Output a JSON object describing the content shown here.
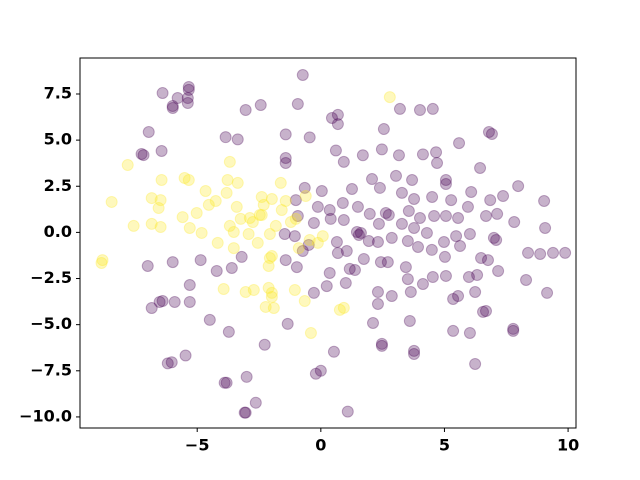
{
  "chart_data": {
    "type": "scatter",
    "xlim": [
      -9.74,
      10.32
    ],
    "ylim": [
      -10.6,
      9.45
    ],
    "xticks": [
      {
        "value": -5,
        "label": "−5"
      },
      0,
      5,
      10
    ],
    "yticks": [
      {
        "value": -10,
        "label": "−10.0"
      },
      {
        "value": -7.5,
        "label": "−7.5"
      },
      {
        "value": -5,
        "label": "−5.0"
      },
      {
        "value": -2.5,
        "label": "−2.5"
      },
      {
        "value": 0,
        "label": "0.0"
      },
      {
        "value": 2.5,
        "label": "2.5"
      },
      {
        "value": 5,
        "label": "5.0"
      },
      {
        "value": 7.5,
        "label": "7.5"
      }
    ],
    "grid": false,
    "series": [
      {
        "color": "#440154",
        "x": [
          -5.34,
          -5.34,
          -5.38,
          -5.38,
          -6.4,
          -5.79,
          -5.99,
          -5.99,
          -0.73,
          -3.04,
          -2.43,
          -0.93,
          0.69,
          0.45,
          0.69,
          2.55,
          3.2,
          4.01,
          4.53,
          -6.96,
          -7.25,
          -7.17,
          -6.44,
          -3.85,
          -3.36,
          -1.42,
          -0.45,
          0.61,
          1.7,
          2.47,
          3.16,
          4.13,
          4.66,
          5.59,
          6.8,
          6.92,
          -1.42,
          -1.42,
          0.93,
          2.07,
          3.04,
          3.69,
          4.7,
          5.06,
          5.06,
          6.44,
          7.98,
          7.37,
          9.03,
          -0.65,
          0.04,
          1.26,
          2.39,
          3.28,
          3.77,
          4.5,
          5.27,
          6.08,
          6.85,
          7.82,
          7.13,
          -1.01,
          -0.12,
          0.36,
          0.89,
          1.5,
          1.98,
          2.63,
          3.56,
          4.01,
          4.58,
          5.06,
          5.55,
          5.95,
          6.68,
          -0.93,
          -0.28,
          0.4,
          0.93,
          1.46,
          1.62,
          1.54,
          2.35,
          2.75,
          3.28,
          3.77,
          4.29,
          4.98,
          5.47,
          6.03,
          7.0,
          7.09,
          8.38,
          8.87,
          9.39,
          -1.46,
          -1.05,
          -0.49,
          0.65,
          1.05,
          1.94,
          2.31,
          2.87,
          3.52,
          3.93,
          4.49,
          5.02,
          5.63,
          6.48,
          6.76,
          -1.42,
          -0.73,
          0.36,
          0.69,
          1.17,
          1.38,
          1.74,
          2.43,
          2.71,
          3.44,
          3.52,
          4.53,
          5.06,
          5.99,
          6.32,
          7.17,
          -4.21,
          -3.6,
          -3.2,
          -4.86,
          -5.99,
          -7.0,
          -0.97,
          -0.28,
          0.24,
          1.01,
          2.31,
          2.31,
          2.87,
          3.64,
          4.13,
          5.35,
          5.55,
          6.24,
          6.56,
          6.68,
          8.3,
          9.15,
          -6.84,
          -6.52,
          -6.4,
          -5.91,
          -5.3,
          -5.3,
          -4.49,
          -3.72,
          2.11,
          3.6,
          5.35,
          6.03,
          7.78,
          7.78,
          2.47,
          2.47,
          3.77,
          3.77,
          6.24,
          -2.27,
          -1.34,
          -6.03,
          -6.19,
          -5.47,
          -3.81,
          -3.89,
          -3.0,
          -2.63,
          -3.04,
          -3.08,
          1.09,
          0.0,
          -0.2,
          0.53,
          9.07,
          9.88
        ],
        "y": [
          7.88,
          7.72,
          7.28,
          7.01,
          7.55,
          7.28,
          6.85,
          6.74,
          8.53,
          6.63,
          6.9,
          6.96,
          6.37,
          6.2,
          5.87,
          5.6,
          6.69,
          6.63,
          6.69,
          5.44,
          4.25,
          4.19,
          4.41,
          5.16,
          5.04,
          5.31,
          5.15,
          4.44,
          4.18,
          4.5,
          4.18,
          4.23,
          4.34,
          4.84,
          5.44,
          5.33,
          4.03,
          3.76,
          3.82,
          2.89,
          3.06,
          2.84,
          3.76,
          2.84,
          2.62,
          3.49,
          2.51,
          1.97,
          1.7,
          2.41,
          2.24,
          2.35,
          2.41,
          2.14,
          1.81,
          1.92,
          1.75,
          2.19,
          1.75,
          0.56,
          1.0,
          1.75,
          1.38,
          1.21,
          1.59,
          1.38,
          1.0,
          1.05,
          1.16,
          0.78,
          0.89,
          0.89,
          0.78,
          1.38,
          0.89,
          0.89,
          0.51,
          0.73,
          0.67,
          0.02,
          -0.03,
          -0.14,
          0.46,
          0.94,
          0.46,
          0.24,
          -0.03,
          -0.52,
          -0.2,
          -0.09,
          -0.3,
          -0.41,
          -1.11,
          -1.17,
          -1.11,
          -0.09,
          -0.2,
          -0.68,
          -0.52,
          -1.01,
          -0.47,
          -0.52,
          -0.3,
          -0.47,
          -0.79,
          -0.95,
          -1.33,
          -0.74,
          -1.39,
          -1.5,
          -1.5,
          -1.01,
          -2.2,
          -1.12,
          -1.98,
          -2.04,
          -1.44,
          -1.61,
          -1.61,
          -1.88,
          -2.53,
          -2.42,
          -2.36,
          -2.42,
          -2.31,
          -2.09,
          -2.09,
          -1.93,
          -1.33,
          -1.5,
          -1.61,
          -1.82,
          -1.88,
          -3.28,
          -2.91,
          -2.74,
          -3.23,
          -3.88,
          -3.45,
          -3.23,
          -2.8,
          -3.61,
          -3.45,
          -3.23,
          -4.31,
          -4.26,
          -2.58,
          -3.28,
          -4.1,
          -3.77,
          -3.72,
          -3.77,
          -3.77,
          -2.85,
          -4.74,
          -5.39,
          -4.91,
          -4.8,
          -5.34,
          -5.45,
          -5.23,
          -5.34,
          -6.04,
          -6.15,
          -6.42,
          -6.59,
          -7.13,
          -6.09,
          -4.96,
          -7.04,
          -7.1,
          -6.67,
          -8.15,
          -8.15,
          -7.83,
          -9.23,
          -9.77,
          -9.77,
          -9.71,
          -7.5,
          -7.66,
          -6.47,
          0.24,
          -1.11
        ]
      },
      {
        "color": "#fde725",
        "x": [
          2.79,
          -7.81,
          -6.44,
          -5.34,
          -5.51,
          -6.84,
          -6.48,
          -6.56,
          -8.46,
          -7.57,
          -6.84,
          -6.48,
          -5.59,
          -5.3,
          -5.02,
          -4.82,
          -4.66,
          -4.53,
          -4.25,
          -3.81,
          -3.77,
          -3.68,
          -3.36,
          -3.4,
          -3.24,
          -3.52,
          -3.52,
          -2.92,
          -2.87,
          -2.39,
          -2.39,
          -2.55,
          -2.06,
          -1.98,
          -2.06,
          -1.82,
          -1.62,
          -1.42,
          -1.21,
          -1.58,
          -1.01,
          -0.89,
          -0.61,
          -0.45,
          -1.98,
          -2.11,
          -2.11,
          -1.98,
          -1.98,
          -2.23,
          -1.9,
          -3.93,
          -3.04,
          -2.71,
          -1.05,
          -0.65,
          -0.4,
          0.77,
          0.93,
          -0.12,
          0.08,
          -8.83,
          -8.87,
          -2.31,
          -2.75,
          -2.47,
          -3.68,
          -4.17
        ],
        "y": [
          7.33,
          3.65,
          2.84,
          2.84,
          2.95,
          1.86,
          1.75,
          1.32,
          1.65,
          0.35,
          0.46,
          0.29,
          0.83,
          0.24,
          1.05,
          -0.03,
          2.24,
          1.49,
          1.7,
          2.14,
          2.84,
          3.82,
          2.68,
          1.38,
          0.73,
          0.02,
          -0.85,
          -0.09,
          0.78,
          0.94,
          1.92,
          -0.57,
          -1.39,
          1.81,
          -0.09,
          0.35,
          2.68,
          1.7,
          0.56,
          1.21,
          0.73,
          -0.85,
          1.97,
          -0.41,
          -1.28,
          -1.82,
          -3.01,
          -3.28,
          -3.5,
          -4.04,
          -4.1,
          -3.07,
          -3.23,
          -3.12,
          -3.12,
          -3.72,
          -5.45,
          -4.2,
          -4.09,
          -0.57,
          -0.2,
          -1.5,
          -1.66,
          1.49,
          0.56,
          0.94,
          0.35,
          -0.57
        ]
      }
    ]
  }
}
